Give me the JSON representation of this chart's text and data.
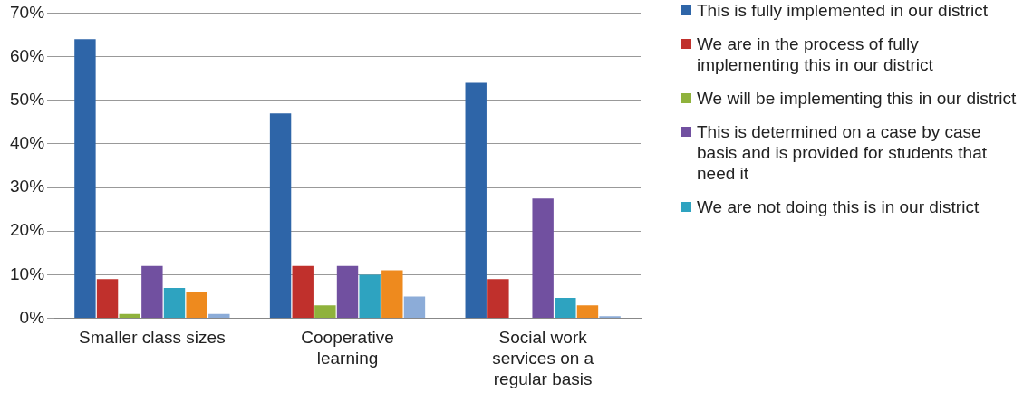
{
  "chart_data": {
    "type": "bar",
    "categories": [
      "Smaller class sizes",
      "Cooperative learning",
      "Social work services on a regular basis"
    ],
    "series": [
      {
        "name": "This is fully implemented in our district",
        "color": "#2e65a8",
        "values": [
          64,
          47,
          54
        ]
      },
      {
        "name": "We are in the process of fully implementing this in our district",
        "color": "#c0302c",
        "values": [
          9,
          12,
          9
        ]
      },
      {
        "name": "We will be implementing this in our district",
        "color": "#8fb23c",
        "values": [
          1,
          3,
          0
        ]
      },
      {
        "name": "This is determined on a case by case basis and is provided for students that need it",
        "color": "#7150a0",
        "values": [
          12,
          12,
          27.5
        ]
      },
      {
        "name": "We are not doing this is in our district",
        "color": "#2ea3c0",
        "values": [
          7,
          10,
          4.7
        ]
      },
      {
        "color": "#ee8a1e",
        "values": [
          6,
          11,
          3
        ]
      },
      {
        "color": "#8cacd8",
        "values": [
          1,
          5,
          0.5
        ]
      }
    ],
    "ylim": [
      0,
      70
    ],
    "yticks": [
      {
        "value": 0,
        "label": "0%"
      },
      {
        "value": 10,
        "label": "10%"
      },
      {
        "value": 20,
        "label": "20%"
      },
      {
        "value": 30,
        "label": "30%"
      },
      {
        "value": 40,
        "label": "40%"
      },
      {
        "value": 50,
        "label": "50%"
      },
      {
        "value": 60,
        "label": "60%"
      },
      {
        "value": 70,
        "label": "70%"
      }
    ],
    "grid": "y",
    "legend": "right"
  }
}
